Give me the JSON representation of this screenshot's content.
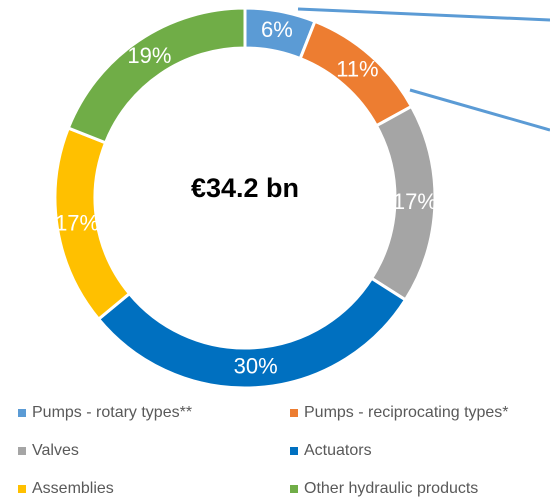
{
  "chart_data": {
    "type": "donut",
    "center_text": "€34.2 bn",
    "categories": [
      "Pumps - rotary types**",
      "Pumps - reciprocating types*",
      "Valves",
      "Actuators",
      "Assemblies",
      "Other hydraulic products"
    ],
    "values": [
      6,
      11,
      17,
      30,
      17,
      19
    ],
    "value_labels": [
      "6%",
      "11%",
      "17%",
      "30%",
      "17%",
      "19%"
    ],
    "colors": [
      "#5b9bd5",
      "#ed7d31",
      "#a5a5a5",
      "#0070c0",
      "#ffc000",
      "#70ad47"
    ],
    "legend": "bottom"
  }
}
